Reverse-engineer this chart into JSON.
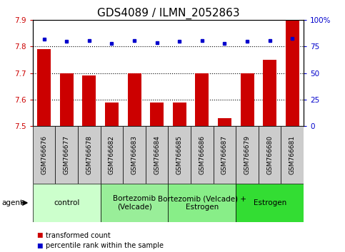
{
  "title": "GDS4089 / ILMN_2052863",
  "samples": [
    "GSM766676",
    "GSM766677",
    "GSM766678",
    "GSM766682",
    "GSM766683",
    "GSM766684",
    "GSM766685",
    "GSM766686",
    "GSM766687",
    "GSM766679",
    "GSM766680",
    "GSM766681"
  ],
  "transformed_counts": [
    7.79,
    7.7,
    7.69,
    7.59,
    7.7,
    7.59,
    7.59,
    7.7,
    7.53,
    7.7,
    7.75,
    7.9
  ],
  "percentile_ranks": [
    82,
    80,
    81,
    78,
    81,
    79,
    80,
    81,
    78,
    80,
    81,
    83
  ],
  "ylim_left": [
    7.5,
    7.9
  ],
  "ylim_right": [
    0,
    100
  ],
  "yticks_left": [
    7.5,
    7.6,
    7.7,
    7.8,
    7.9
  ],
  "yticks_right": [
    0,
    25,
    50,
    75,
    100
  ],
  "ytick_labels_right": [
    "0",
    "25",
    "50",
    "75",
    "100%"
  ],
  "hlines": [
    7.6,
    7.7,
    7.8
  ],
  "bar_color": "#cc0000",
  "dot_color": "#0000cc",
  "bar_width": 0.6,
  "groups": [
    {
      "label": "control",
      "start": 0,
      "end": 3,
      "color": "#ccffcc"
    },
    {
      "label": "Bortezomib\n(Velcade)",
      "start": 3,
      "end": 6,
      "color": "#99ee99"
    },
    {
      "label": "Bortezomib (Velcade) +\nEstrogen",
      "start": 6,
      "end": 9,
      "color": "#88ee88"
    },
    {
      "label": "Estrogen",
      "start": 9,
      "end": 12,
      "color": "#33dd33"
    }
  ],
  "legend_bar_label": "transformed count",
  "legend_dot_label": "percentile rank within the sample",
  "agent_label": "agent",
  "bar_color_r": "#cc0000",
  "dot_color_b": "#0000cc",
  "title_fontsize": 11,
  "tick_fontsize": 7.5,
  "sample_fontsize": 6.5,
  "group_label_fontsize": 7.5,
  "legend_fontsize": 7,
  "bg_color": "#ffffff",
  "sample_box_color": "#cccccc"
}
